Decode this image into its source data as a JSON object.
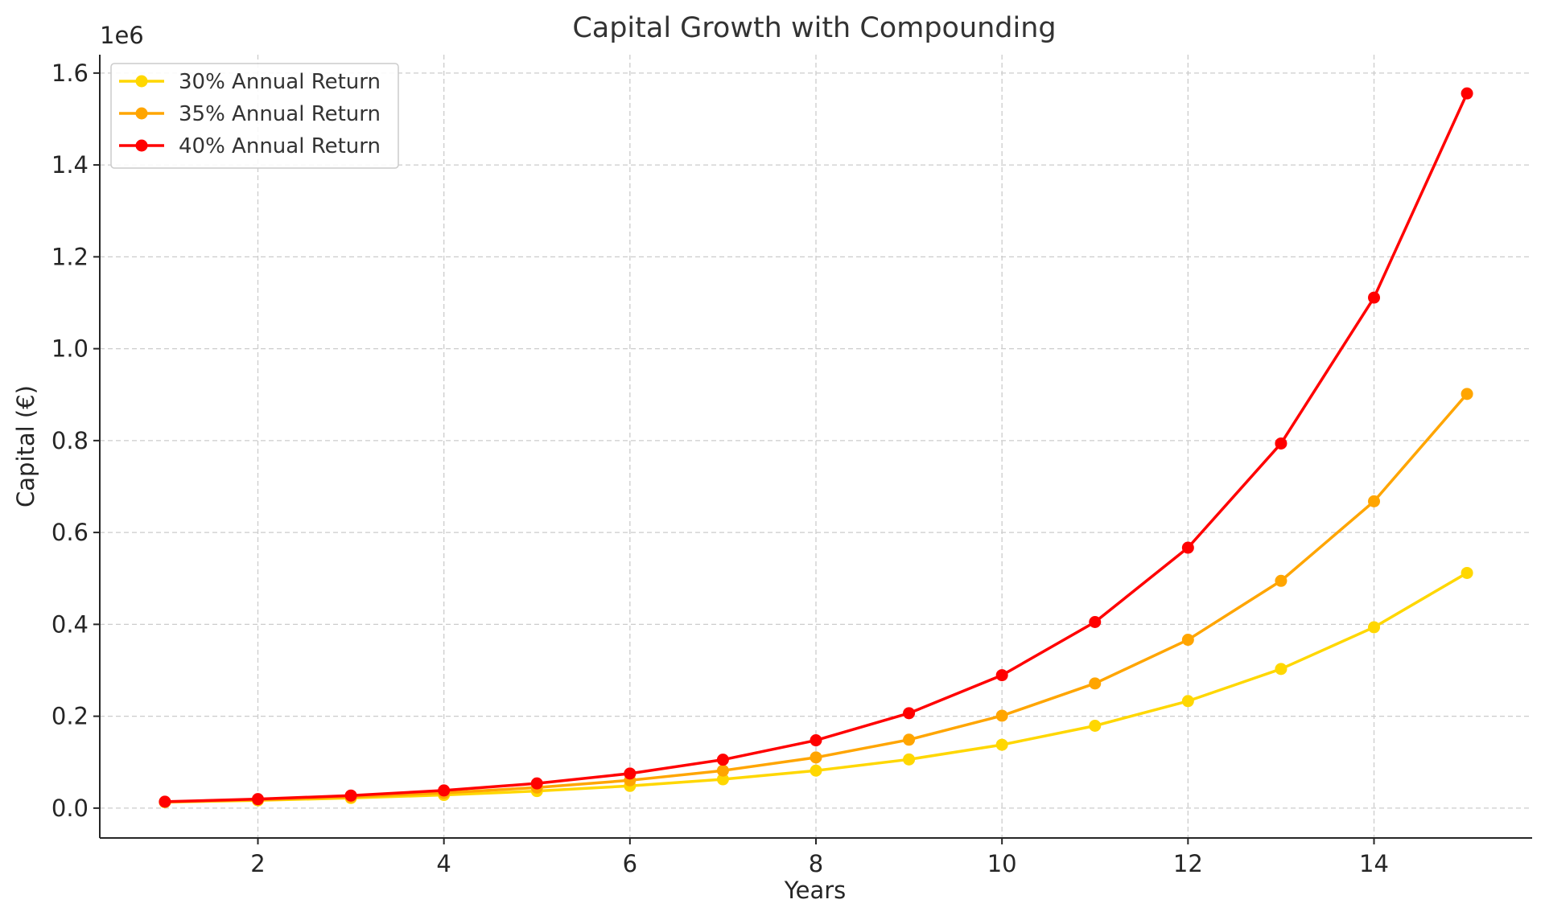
{
  "chart_data": {
    "type": "line",
    "title": "Capital Growth with Compounding",
    "xlabel": "Years",
    "ylabel": "Capital (€)",
    "y_offset_label": "1e6",
    "x": [
      1,
      2,
      3,
      4,
      5,
      6,
      7,
      8,
      9,
      10,
      11,
      12,
      13,
      14,
      15
    ],
    "xlim": [
      0.3,
      15.7
    ],
    "ylim": [
      -0.065,
      1.64
    ],
    "x_ticks": [
      2,
      4,
      6,
      8,
      10,
      12,
      14
    ],
    "x_tick_labels": [
      "2",
      "4",
      "6",
      "8",
      "10",
      "12",
      "14"
    ],
    "y_ticks": [
      0.0,
      0.2,
      0.4,
      0.6,
      0.8,
      1.0,
      1.2,
      1.4,
      1.6
    ],
    "y_tick_labels": [
      "0.0",
      "0.2",
      "0.4",
      "0.6",
      "0.8",
      "1.0",
      "1.2",
      "1.4",
      "1.6"
    ],
    "y_scale_note": "values in units of 1e6 €",
    "grid": true,
    "legend_position": "top-left",
    "series": [
      {
        "name": "30% Annual Return",
        "color": "#FFD700",
        "values": [
          0.013,
          0.0169,
          0.022,
          0.0286,
          0.0371,
          0.0483,
          0.0627,
          0.0816,
          0.106,
          0.1379,
          0.1792,
          0.233,
          0.3029,
          0.3937,
          0.5119
        ]
      },
      {
        "name": "35% Annual Return",
        "color": "#FFA500",
        "values": [
          0.0135,
          0.0182,
          0.0246,
          0.0332,
          0.0448,
          0.0605,
          0.0817,
          0.1103,
          0.1489,
          0.2011,
          0.2714,
          0.3664,
          0.4947,
          0.6678,
          0.9016
        ]
      },
      {
        "name": "40% Annual Return",
        "color": "#FF0000",
        "values": [
          0.014,
          0.0196,
          0.0274,
          0.0384,
          0.0538,
          0.0753,
          0.1054,
          0.1476,
          0.2066,
          0.2893,
          0.405,
          0.5669,
          0.7937,
          1.1112,
          1.5557
        ]
      }
    ]
  }
}
